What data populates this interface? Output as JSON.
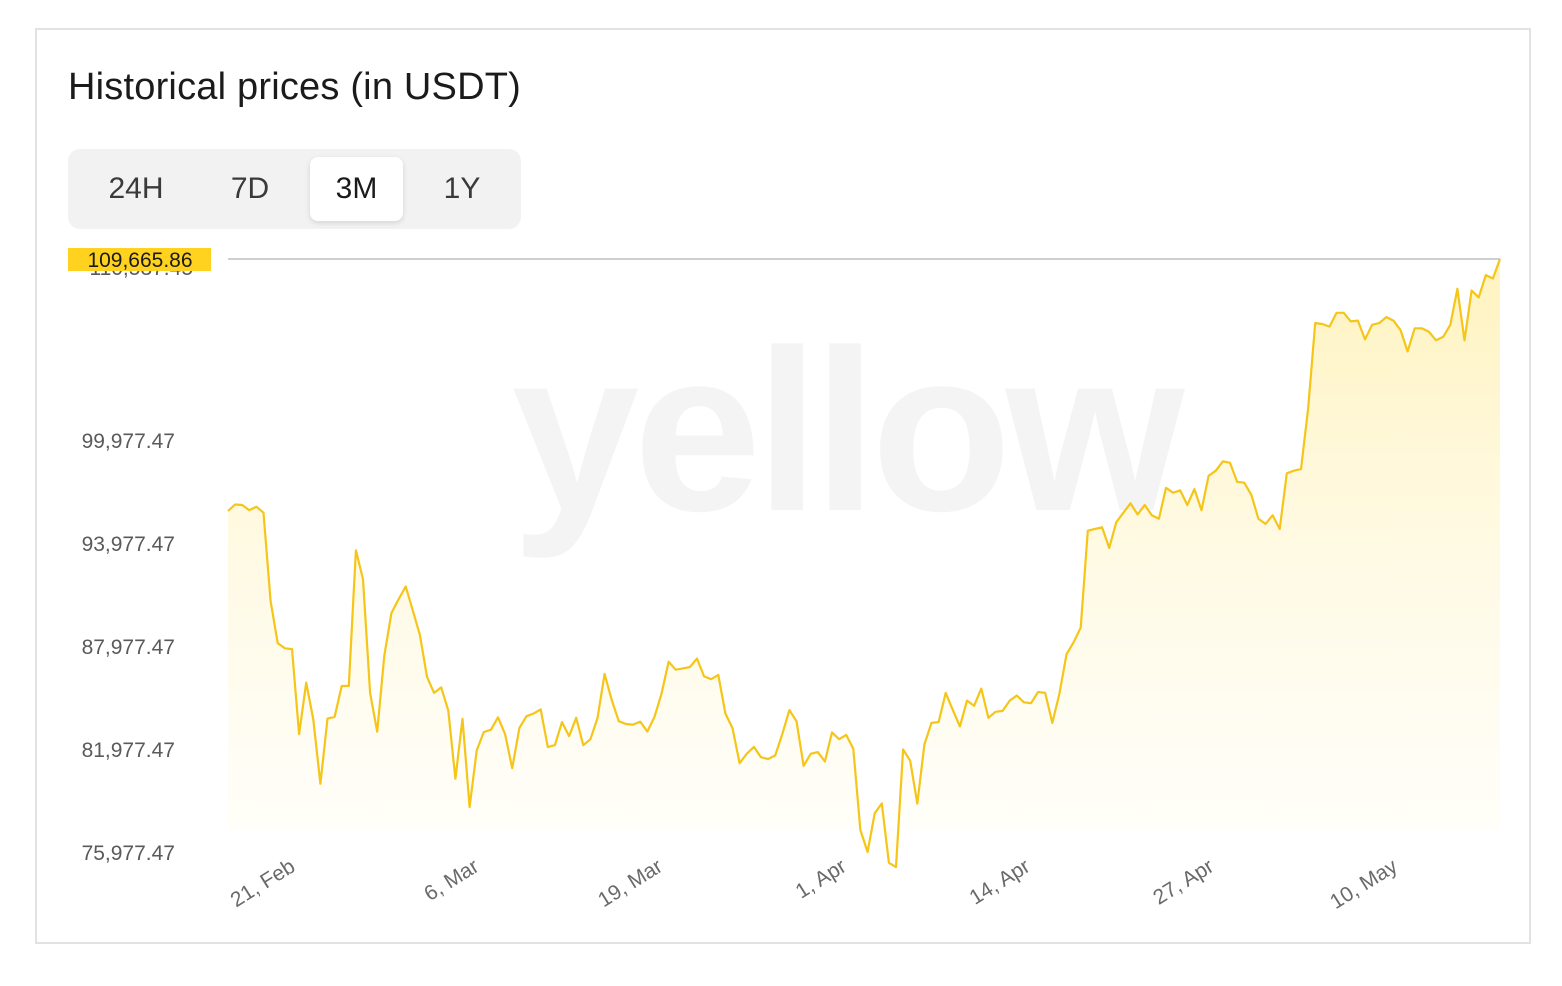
{
  "header": {
    "title": "Historical prices (in USDT)"
  },
  "tabs": [
    {
      "label": "24H",
      "active": false
    },
    {
      "label": "7D",
      "active": false
    },
    {
      "label": "3M",
      "active": true
    },
    {
      "label": "1Y",
      "active": false
    }
  ],
  "watermark": {
    "text": "yellow"
  },
  "colors": {
    "line": "#f5c518",
    "badge": "#ffd21f",
    "fill_top": "#fff0b8"
  },
  "chart_data": {
    "type": "area",
    "title": "",
    "xlabel": "",
    "ylabel": "",
    "y_ticks": [
      75977.47,
      81977.47,
      87977.47,
      93977.47,
      99977.47
    ],
    "y_tick_labels": [
      "75,977.47",
      "81,977.47",
      "87,977.47",
      "93,977.47",
      "99,977.47"
    ],
    "y_top_label": "110,537.45",
    "current_value_label": "109,665.86",
    "ylim": [
      75977.47,
      110537.45
    ],
    "x_ticks": [
      "2025-02-21",
      "2025-03-06",
      "2025-03-19",
      "2025-04-01",
      "2025-04-14",
      "2025-04-27",
      "2025-05-10"
    ],
    "x_tick_labels": [
      "21, Feb",
      "6, Mar",
      "19, Mar",
      "1, Apr",
      "14, Apr",
      "27, Apr",
      "10, May"
    ],
    "x_range": [
      "2025-02-17",
      "2025-05-18"
    ],
    "grid": false,
    "series": [
      {
        "values": [
          95850,
          96230,
          96200,
          95900,
          96100,
          95750,
          90600,
          88150,
          87850,
          87800,
          82850,
          85850,
          83700,
          79950,
          83750,
          83850,
          85650,
          85660,
          93560,
          91880,
          85250,
          82990,
          87420,
          89900,
          90700,
          91450,
          90050,
          88630,
          86190,
          85250,
          85570,
          84220,
          80250,
          83740,
          78600,
          81890,
          82970,
          83100,
          83830,
          82850,
          80860,
          83210,
          83890,
          84050,
          84290,
          82090,
          82210,
          83550,
          82730,
          83800,
          82200,
          82550,
          83780,
          86360,
          84840,
          83600,
          83440,
          83400,
          83570,
          83000,
          83840,
          85200,
          87070,
          86600,
          86680,
          86760,
          87250,
          86210,
          86050,
          86300,
          84050,
          83200,
          81150,
          81700,
          82100,
          81500,
          81400,
          81600,
          82850,
          84250,
          83600,
          81000,
          81700,
          81800,
          81250,
          82950,
          82550,
          82800,
          82000,
          77250,
          75980,
          78230,
          78810,
          75350,
          75100,
          81950,
          81300,
          78800,
          82250,
          83500,
          83550,
          85250,
          84260,
          83300,
          84800,
          84500,
          85500,
          83800,
          84150,
          84200,
          84800,
          85100,
          84700,
          84650,
          85300,
          85250,
          83500,
          85200,
          87500,
          88200,
          89050,
          94700,
          94800,
          94900,
          93700,
          95200,
          95750,
          96300,
          95650,
          96200,
          95600,
          95400,
          97200,
          96920,
          97050,
          96200,
          97130,
          95900,
          97900,
          98200,
          98750,
          98660,
          97550,
          97500,
          96800,
          95400,
          95100,
          95600,
          94800,
          98050,
          98200,
          98300,
          101800,
          106800,
          106750,
          106600,
          107400,
          107400,
          106900,
          106950,
          105850,
          106700,
          106800,
          107150,
          106950,
          106400,
          105150,
          106500,
          106500,
          106300,
          105800,
          106000,
          106700,
          108800,
          105800,
          108700,
          108300,
          109600,
          109400,
          110537.45
        ]
      }
    ]
  }
}
